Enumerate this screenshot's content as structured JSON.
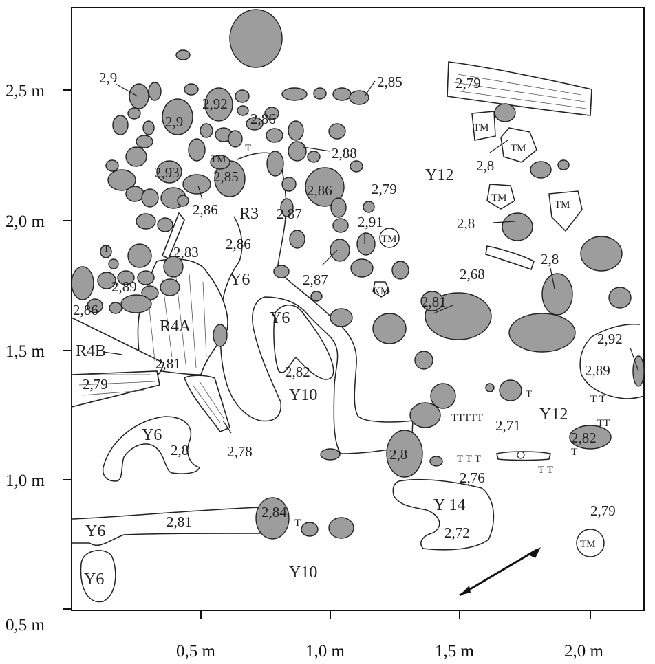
{
  "axes": {
    "y_ticks": [
      {
        "label": "2,5 m",
        "value": 2.5
      },
      {
        "label": "2,0 m",
        "value": 2.0
      },
      {
        "label": "1,5 m",
        "value": 1.5
      },
      {
        "label": "1,0 m",
        "value": 1.0
      },
      {
        "label": "0,5 m",
        "value": 0.5
      }
    ],
    "x_ticks": [
      {
        "label": "0,5 m",
        "value": 0.5
      },
      {
        "label": "1,0 m",
        "value": 1.0
      },
      {
        "label": "1,5 m",
        "value": 1.5
      },
      {
        "label": "2,0 m",
        "value": 2.0
      }
    ]
  },
  "units": {
    "r3": "R3",
    "r4a": "R4A",
    "r4b": "R4B",
    "y6_left_upper": "Y6",
    "y6_center": "Y6",
    "y6_lower_left": "Y6",
    "y6_bottom_left_a": "Y6",
    "y6_bottom_left_b": "Y6",
    "y10_center": "Y10",
    "y10_bottom": "Y10",
    "y12_top": "Y12",
    "y12_right": "Y12",
    "y14": "Y 14"
  },
  "elevations": {
    "e1": "2,9",
    "e2": "2,92",
    "e3": "2,9",
    "e4": "2,86",
    "e5": "2,85",
    "e6": "2,79",
    "e7": "2,88",
    "e8": "2,93",
    "e9": "2,85",
    "e10": "2,86",
    "e11": "2,86",
    "e12": "2,79",
    "e13": "2,8",
    "e14": "2,87",
    "e15": "2,91",
    "e16": "2,8",
    "e17": "2,83",
    "e18": "2,86",
    "e19": "2,87",
    "e20": "2,68",
    "e21": "2,8",
    "e22": "2,89",
    "e23": "2,86",
    "e24": "2,81",
    "e25": "2,92",
    "e26": "2,89",
    "e27": "2,81",
    "e28": "2,82",
    "e29": "2,79",
    "e30": "2,71",
    "e31": "2,78",
    "e32": "2,8",
    "e33": "2,82",
    "e34": "2,8",
    "e35": "2,76",
    "e36": "2,84",
    "e37": "2,81",
    "e38": "2,72",
    "e39": "2,79"
  },
  "markers": {
    "tm1": "TM",
    "tm2": "TM",
    "tm3": "TM",
    "tm4": "TM",
    "tm5": "TM",
    "tm6": "TM",
    "tm7": "TM",
    "km": "KM"
  }
}
